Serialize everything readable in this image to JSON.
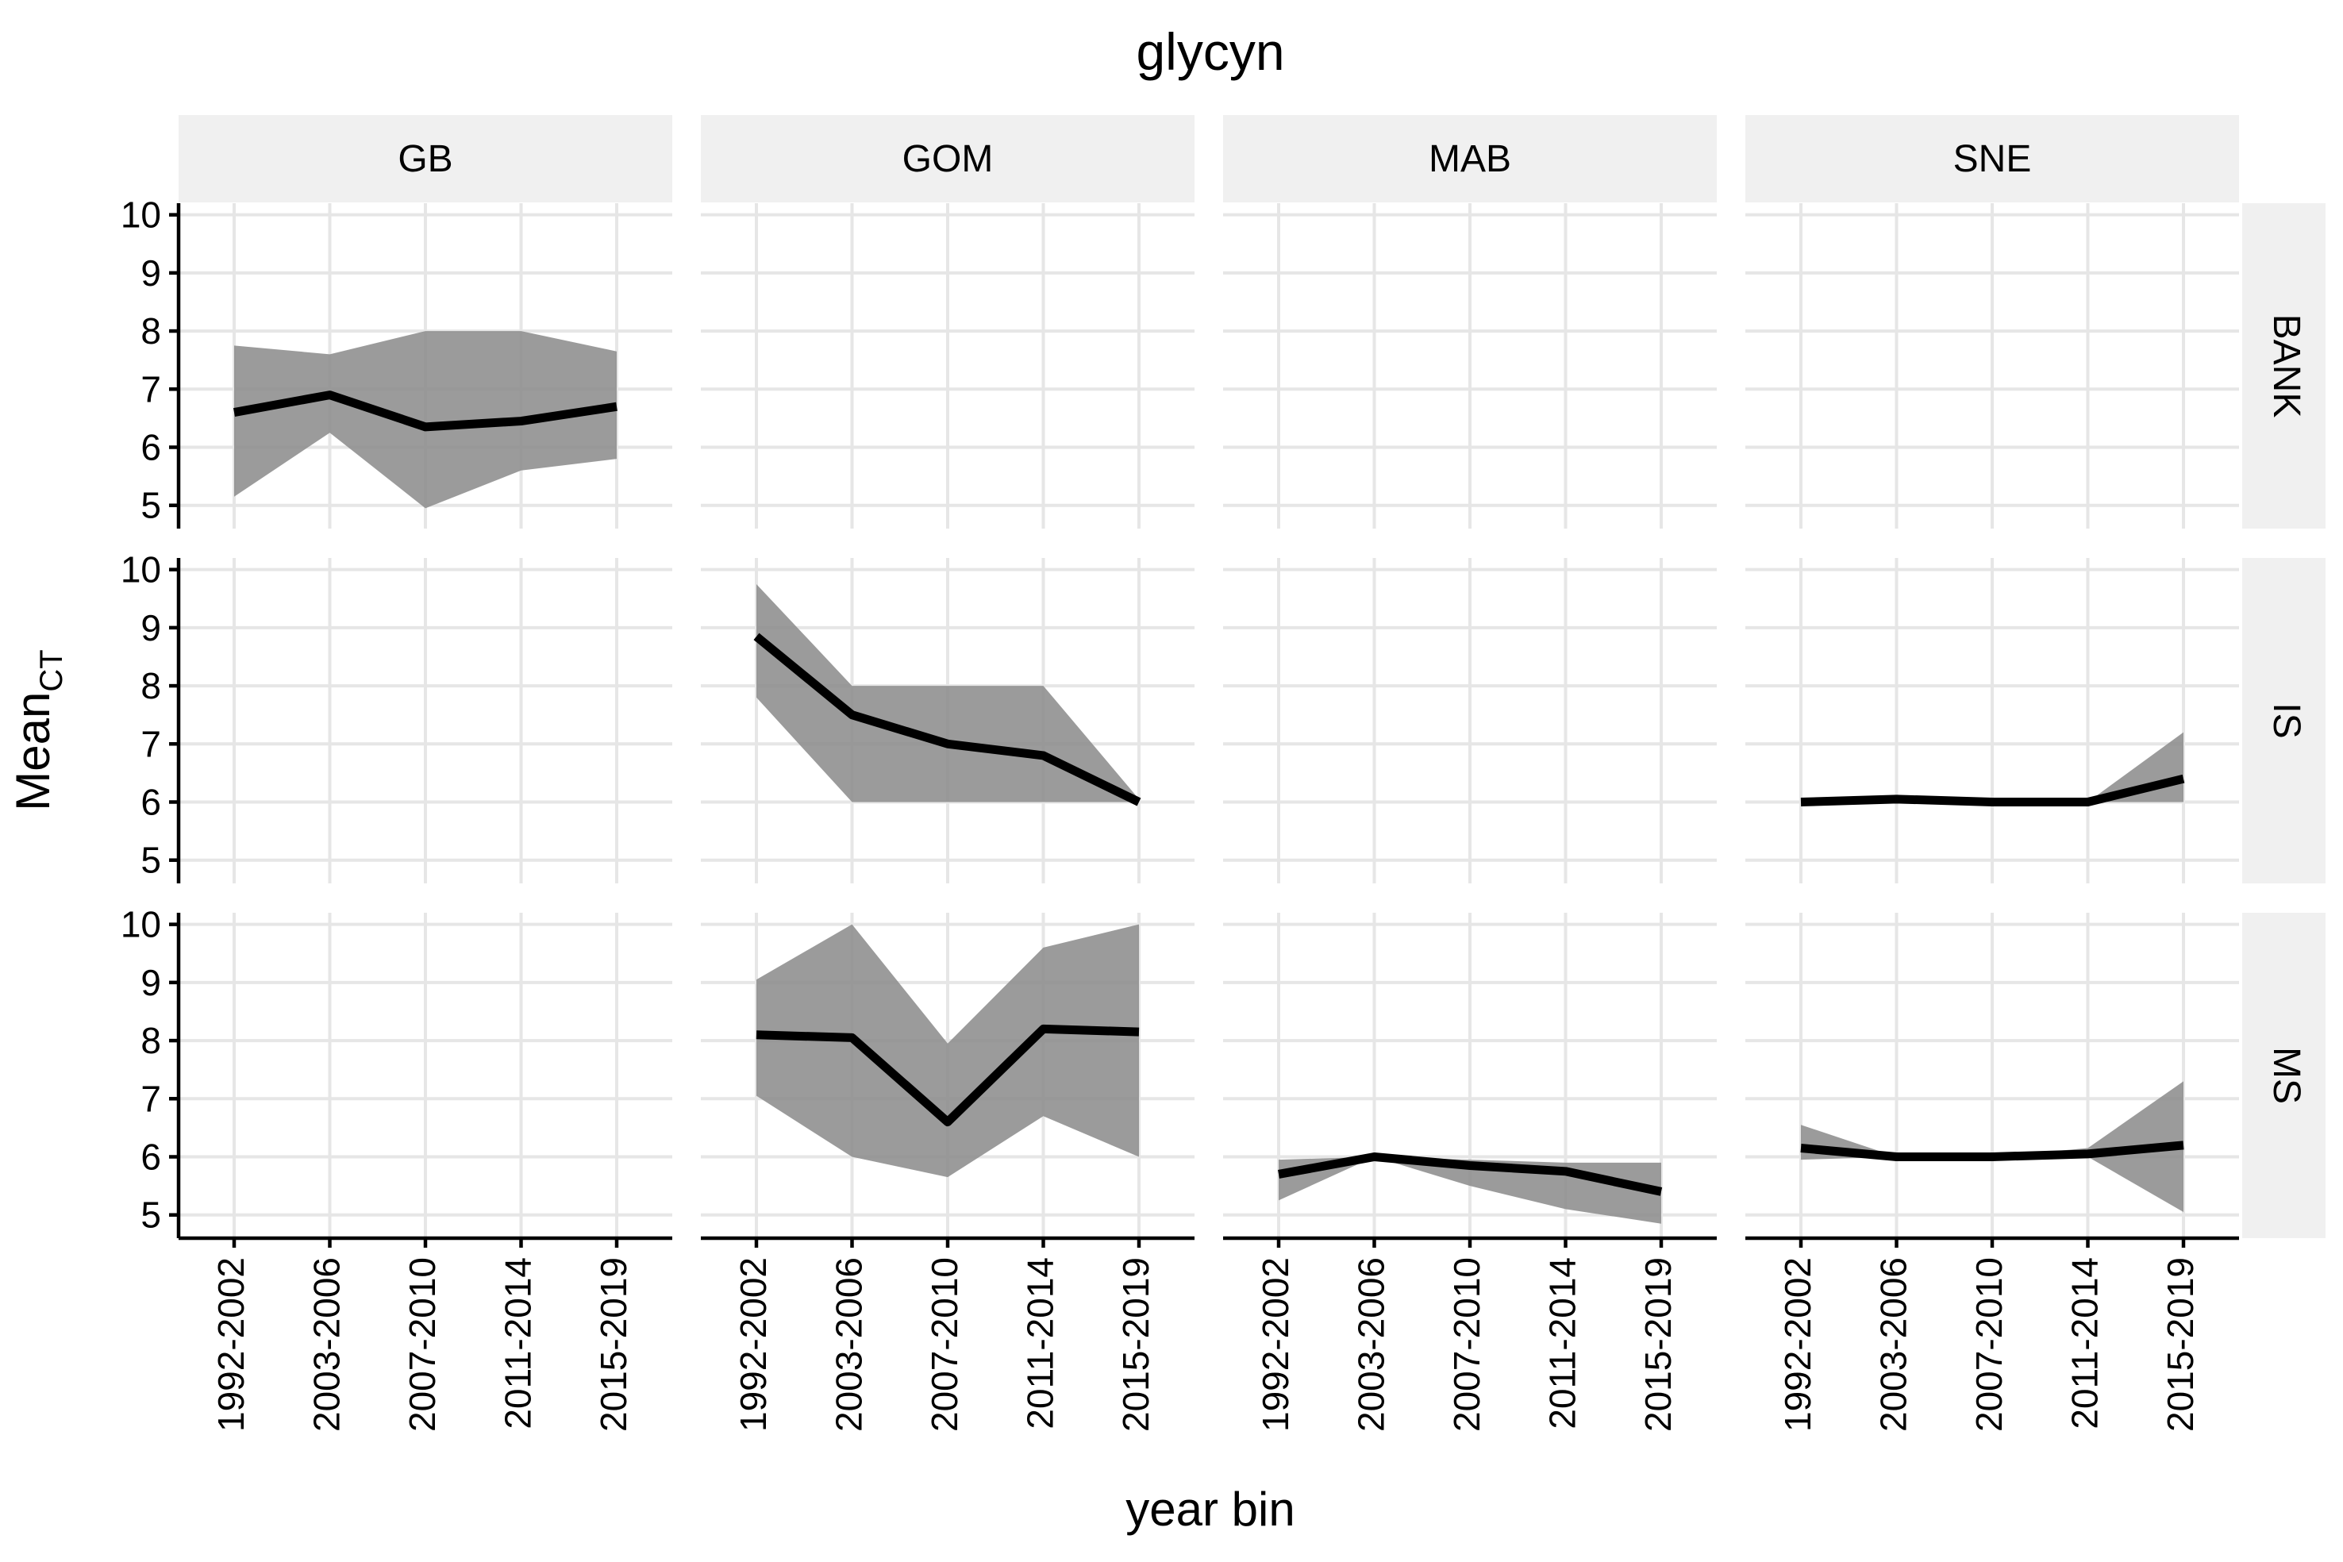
{
  "chart_data": {
    "type": "line",
    "title": "glycyn",
    "xlabel": "year bin",
    "ylabel_main": "Mean",
    "ylabel_sub": "CT",
    "categories": [
      "1992-2002",
      "2003-2006",
      "2007-2010",
      "2011-2014",
      "2015-2019"
    ],
    "y_ticks": [
      5,
      6,
      7,
      8,
      9,
      10
    ],
    "ylim": [
      4.6,
      10.2
    ],
    "columns": [
      "GB",
      "GOM",
      "MAB",
      "SNE"
    ],
    "rows": [
      "BANK",
      "IS",
      "MS"
    ],
    "grid": true,
    "ribbon": true,
    "panels": [
      {
        "col": "GB",
        "row": "BANK",
        "mean": [
          6.6,
          6.9,
          6.35,
          6.45,
          6.7
        ],
        "lower": [
          5.15,
          6.25,
          4.95,
          5.6,
          5.8
        ],
        "upper": [
          7.75,
          7.6,
          8.0,
          8.0,
          7.65
        ]
      },
      {
        "col": "GOM",
        "row": "IS",
        "mean": [
          8.85,
          7.5,
          7.0,
          6.8,
          6.0
        ],
        "lower": [
          7.8,
          6.0,
          6.0,
          6.0,
          6.0
        ],
        "upper": [
          9.75,
          8.0,
          8.0,
          8.0,
          6.05
        ]
      },
      {
        "col": "SNE",
        "row": "IS",
        "mean": [
          6.0,
          6.05,
          6.0,
          6.0,
          6.4
        ],
        "lower": [
          6.0,
          6.0,
          6.0,
          6.0,
          6.0
        ],
        "upper": [
          6.0,
          6.05,
          6.0,
          6.0,
          7.2
        ]
      },
      {
        "col": "GOM",
        "row": "MS",
        "mean": [
          8.1,
          8.05,
          6.6,
          8.2,
          8.15
        ],
        "lower": [
          7.05,
          6.0,
          5.65,
          6.7,
          6.0
        ],
        "upper": [
          9.05,
          10.0,
          7.95,
          9.6,
          10.0
        ]
      },
      {
        "col": "MAB",
        "row": "MS",
        "mean": [
          5.7,
          6.0,
          5.85,
          5.75,
          5.4
        ],
        "lower": [
          5.25,
          6.0,
          5.5,
          5.1,
          4.85
        ],
        "upper": [
          5.95,
          6.0,
          5.95,
          5.9,
          5.9
        ]
      },
      {
        "col": "SNE",
        "row": "MS",
        "mean": [
          6.15,
          6.0,
          6.0,
          6.05,
          6.2
        ],
        "lower": [
          5.95,
          6.0,
          6.0,
          6.0,
          5.05
        ],
        "upper": [
          6.55,
          6.0,
          6.0,
          6.15,
          7.3
        ]
      }
    ]
  }
}
